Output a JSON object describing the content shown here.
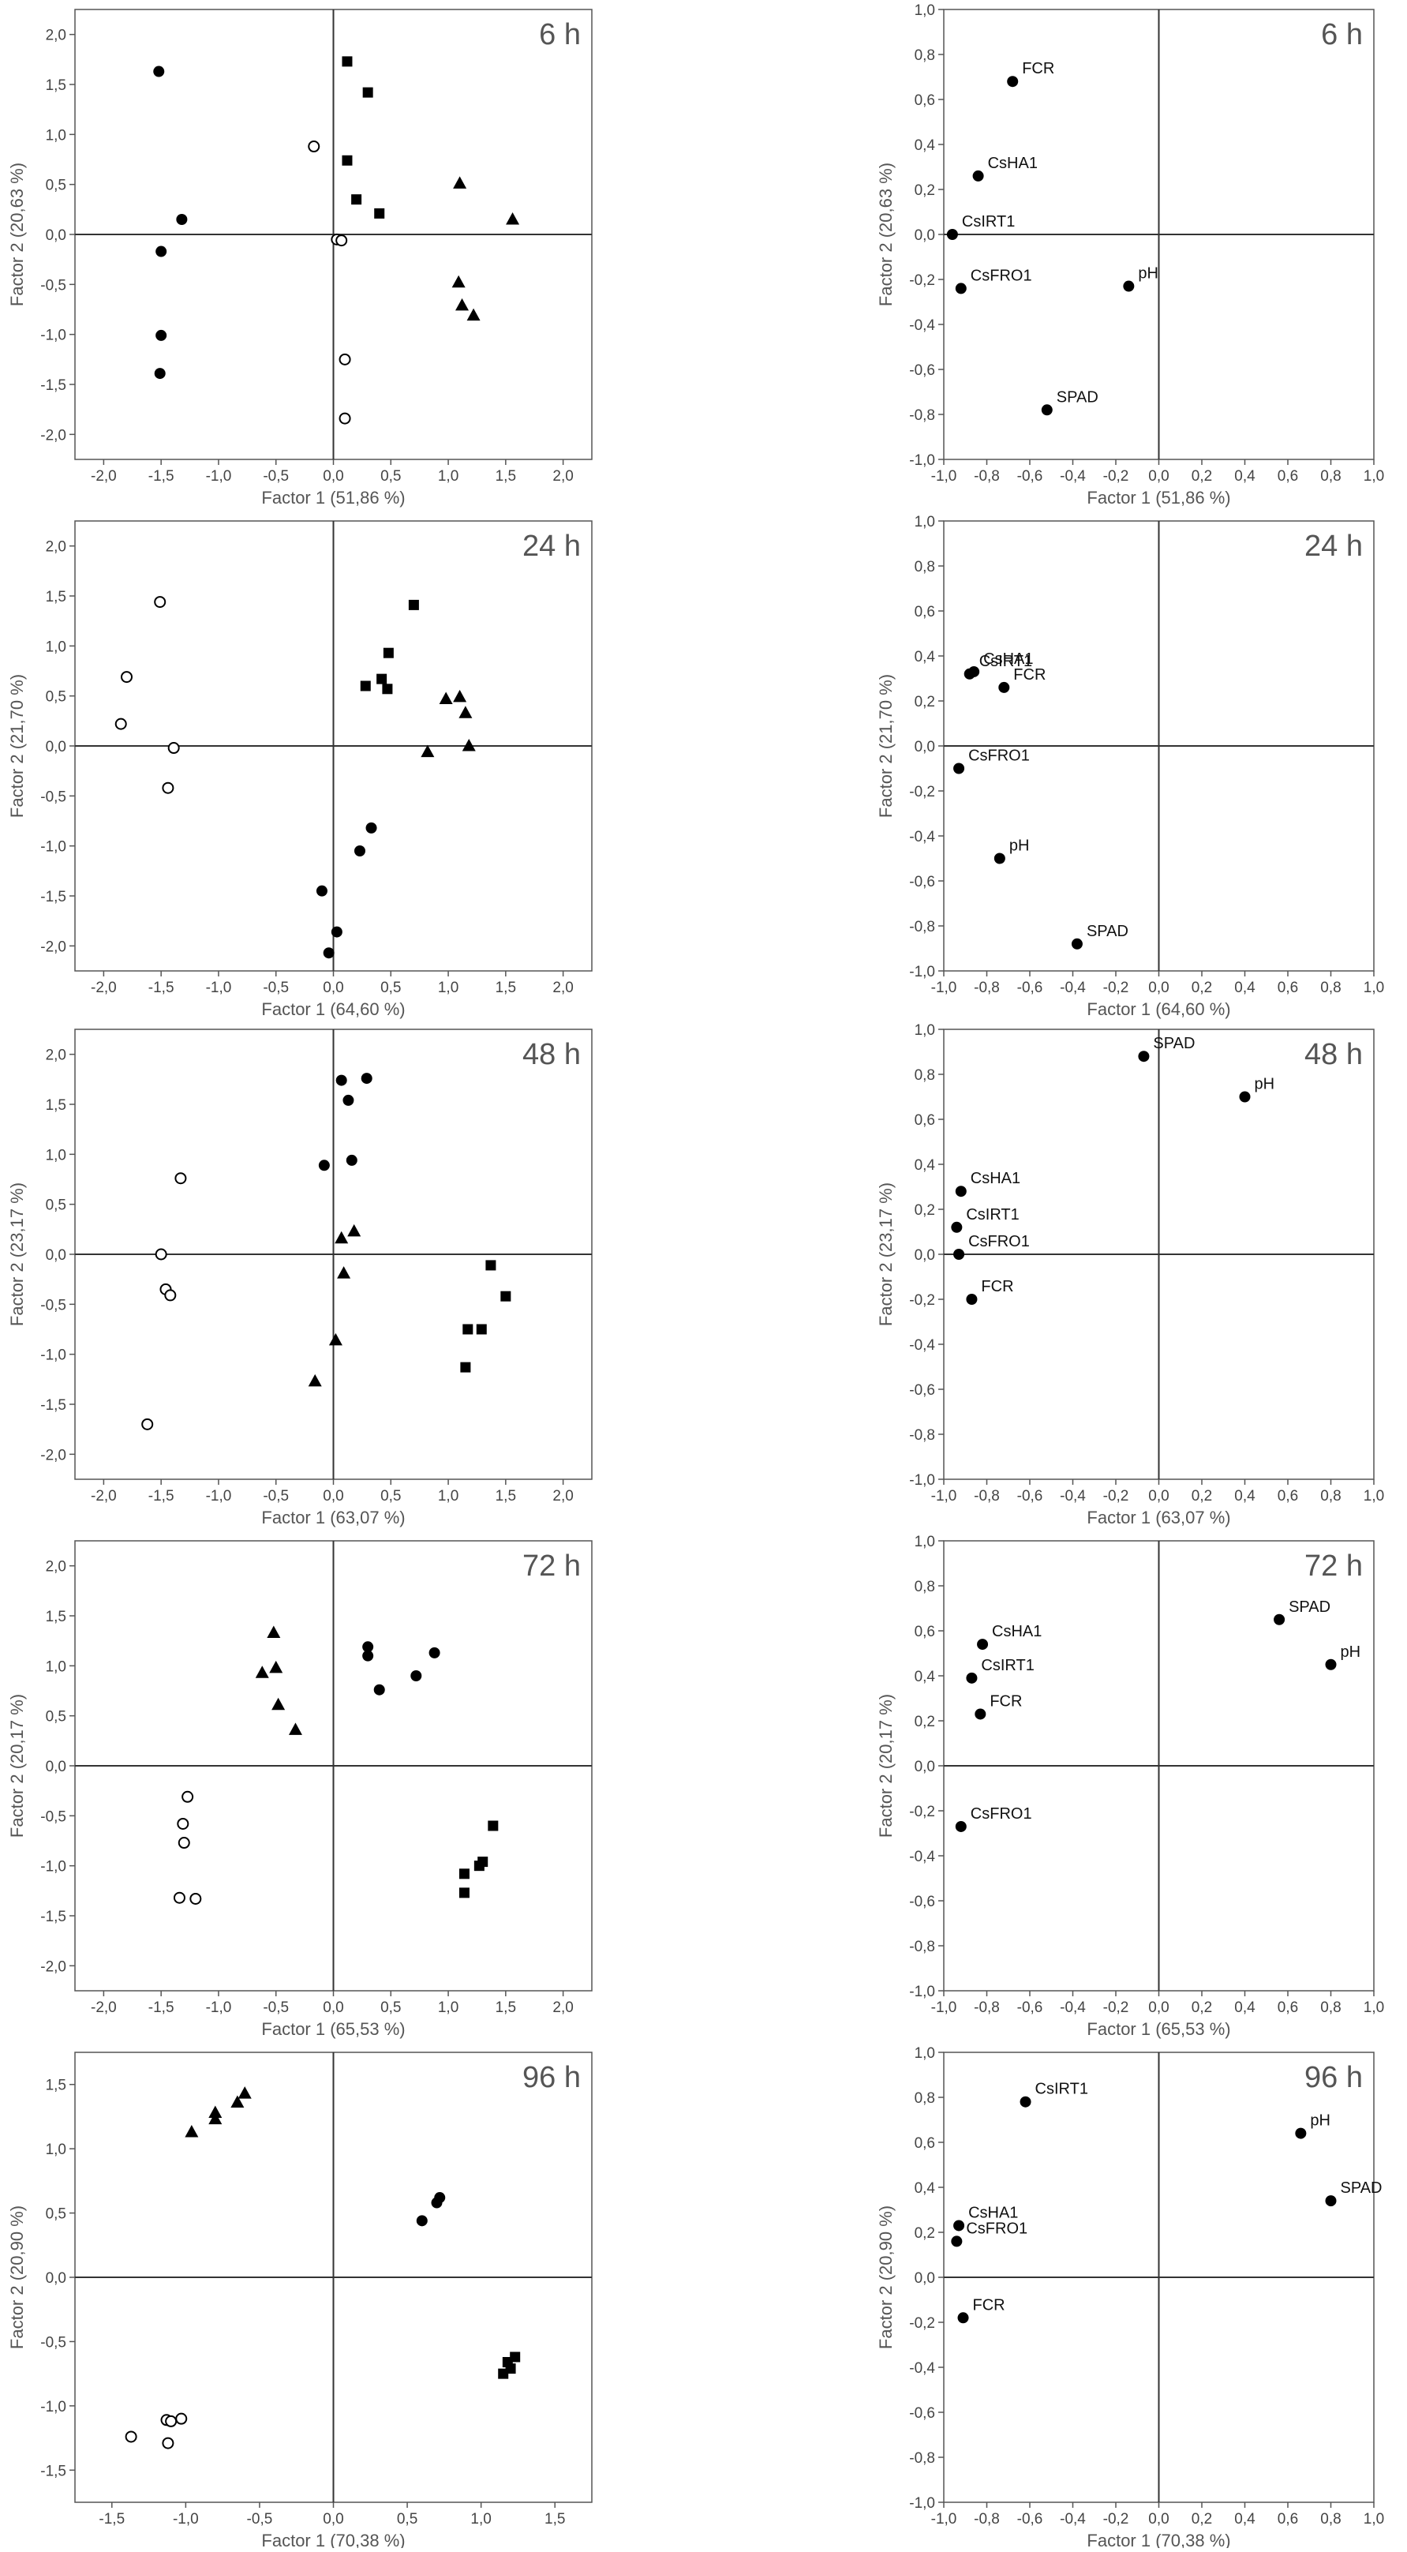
{
  "chart_data": [
    {
      "type": "scatter",
      "panel": "scores",
      "time_label": "6 h",
      "xlabel": "Factor 1 (51,86 %)",
      "ylabel": "Factor 2 (20,63 %)",
      "xlim": [
        -2.25,
        2.25
      ],
      "ylim": [
        -2.25,
        2.25
      ],
      "xticks": [
        -2.0,
        -1.5,
        -1.0,
        -0.5,
        0.0,
        0.5,
        1.0,
        1.5,
        2.0
      ],
      "yticks": [
        -2.0,
        -1.5,
        -1.0,
        -0.5,
        0.0,
        0.5,
        1.0,
        1.5,
        2.0
      ],
      "tick_decimals": 1,
      "grid": false,
      "series": [
        {
          "marker": "filled-circle",
          "points": [
            [
              -1.52,
              1.63
            ],
            [
              -1.32,
              0.15
            ],
            [
              -1.5,
              -0.17
            ],
            [
              -1.5,
              -1.01
            ],
            [
              -1.51,
              -1.39
            ]
          ]
        },
        {
          "marker": "open-circle",
          "points": [
            [
              -0.17,
              0.88
            ],
            [
              0.03,
              -0.05
            ],
            [
              0.07,
              -0.06
            ],
            [
              0.1,
              -1.25
            ],
            [
              0.1,
              -1.84
            ]
          ]
        },
        {
          "marker": "filled-square",
          "points": [
            [
              0.12,
              1.73
            ],
            [
              0.3,
              1.42
            ],
            [
              0.12,
              0.74
            ],
            [
              0.2,
              0.35
            ],
            [
              0.4,
              0.21
            ]
          ]
        },
        {
          "marker": "filled-triangle",
          "points": [
            [
              1.1,
              0.51
            ],
            [
              1.56,
              0.15
            ],
            [
              1.09,
              -0.48
            ],
            [
              1.12,
              -0.71
            ],
            [
              1.22,
              -0.81
            ]
          ]
        }
      ]
    },
    {
      "type": "scatter",
      "panel": "loadings",
      "time_label": "6 h",
      "xlabel": "Factor 1 (51,86 %)",
      "ylabel": "Factor 2 (20,63 %)",
      "xlim": [
        -1.0,
        1.0
      ],
      "ylim": [
        -1.0,
        1.0
      ],
      "xticks": [
        -1.0,
        -0.8,
        -0.6,
        -0.4,
        -0.2,
        0.0,
        0.2,
        0.4,
        0.6,
        0.8,
        1.0
      ],
      "yticks": [
        -1.0,
        -0.8,
        -0.6,
        -0.4,
        -0.2,
        0.0,
        0.2,
        0.4,
        0.6,
        0.8,
        1.0
      ],
      "tick_decimals": 1,
      "grid": false,
      "points": [
        {
          "label": "FCR",
          "x": -0.68,
          "y": 0.68
        },
        {
          "label": "CsHA1",
          "x": -0.84,
          "y": 0.26
        },
        {
          "label": "CsIRT1",
          "x": -0.96,
          "y": 0.0
        },
        {
          "label": "CsFRO1",
          "x": -0.92,
          "y": -0.24
        },
        {
          "label": "pH",
          "x": -0.14,
          "y": -0.23
        },
        {
          "label": "SPAD",
          "x": -0.52,
          "y": -0.78
        }
      ]
    },
    {
      "type": "scatter",
      "panel": "scores",
      "time_label": "24 h",
      "xlabel": "Factor 1 (64,60 %)",
      "ylabel": "Factor 2 (21,70 %)",
      "xlim": [
        -2.25,
        2.25
      ],
      "ylim": [
        -2.25,
        2.25
      ],
      "xticks": [
        -2.0,
        -1.5,
        -1.0,
        -0.5,
        0.0,
        0.5,
        1.0,
        1.5,
        2.0
      ],
      "yticks": [
        -2.0,
        -1.5,
        -1.0,
        -0.5,
        0.0,
        0.5,
        1.0,
        1.5,
        2.0
      ],
      "tick_decimals": 1,
      "grid": false,
      "series": [
        {
          "marker": "open-circle",
          "points": [
            [
              -1.51,
              1.44
            ],
            [
              -1.8,
              0.69
            ],
            [
              -1.85,
              0.22
            ],
            [
              -1.39,
              -0.02
            ],
            [
              -1.44,
              -0.42
            ]
          ]
        },
        {
          "marker": "filled-square",
          "points": [
            [
              0.7,
              1.41
            ],
            [
              0.48,
              0.93
            ],
            [
              0.42,
              0.67
            ],
            [
              0.28,
              0.6
            ],
            [
              0.47,
              0.57
            ]
          ]
        },
        {
          "marker": "filled-triangle",
          "points": [
            [
              0.98,
              0.47
            ],
            [
              1.1,
              0.49
            ],
            [
              1.15,
              0.33
            ],
            [
              0.82,
              -0.06
            ],
            [
              1.18,
              0.0
            ]
          ]
        },
        {
          "marker": "filled-circle",
          "points": [
            [
              0.33,
              -0.82
            ],
            [
              0.23,
              -1.05
            ],
            [
              -0.1,
              -1.45
            ],
            [
              0.03,
              -1.86
            ],
            [
              -0.04,
              -2.07
            ]
          ]
        }
      ]
    },
    {
      "type": "scatter",
      "panel": "loadings",
      "time_label": "24 h",
      "xlabel": "Factor 1 (64,60 %)",
      "ylabel": "Factor 2 (21,70 %)",
      "xlim": [
        -1.0,
        1.0
      ],
      "ylim": [
        -1.0,
        1.0
      ],
      "xticks": [
        -1.0,
        -0.8,
        -0.6,
        -0.4,
        -0.2,
        0.0,
        0.2,
        0.4,
        0.6,
        0.8,
        1.0
      ],
      "yticks": [
        -1.0,
        -0.8,
        -0.6,
        -0.4,
        -0.2,
        0.0,
        0.2,
        0.4,
        0.6,
        0.8,
        1.0
      ],
      "tick_decimals": 1,
      "grid": false,
      "points": [
        {
          "label": "CsIRT1",
          "x": -0.88,
          "y": 0.32
        },
        {
          "label": "CsHA1",
          "x": -0.86,
          "y": 0.33
        },
        {
          "label": "FCR",
          "x": -0.72,
          "y": 0.26
        },
        {
          "label": "CsFRO1",
          "x": -0.93,
          "y": -0.1
        },
        {
          "label": "pH",
          "x": -0.74,
          "y": -0.5
        },
        {
          "label": "SPAD",
          "x": -0.38,
          "y": -0.88
        }
      ]
    },
    {
      "type": "scatter",
      "panel": "scores",
      "time_label": "48 h",
      "xlabel": "Factor 1 (63,07 %)",
      "ylabel": "Factor 2 (23,17 %)",
      "xlim": [
        -2.25,
        2.25
      ],
      "ylim": [
        -2.25,
        2.25
      ],
      "xticks": [
        -2.0,
        -1.5,
        -1.0,
        -0.5,
        0.0,
        0.5,
        1.0,
        1.5,
        2.0
      ],
      "yticks": [
        -2.0,
        -1.5,
        -1.0,
        -0.5,
        0.0,
        0.5,
        1.0,
        1.5,
        2.0
      ],
      "tick_decimals": 1,
      "grid": false,
      "series": [
        {
          "marker": "filled-circle",
          "points": [
            [
              0.07,
              1.74
            ],
            [
              0.29,
              1.76
            ],
            [
              0.13,
              1.54
            ],
            [
              -0.08,
              0.89
            ],
            [
              0.16,
              0.94
            ]
          ]
        },
        {
          "marker": "open-circle",
          "points": [
            [
              -1.33,
              0.76
            ],
            [
              -1.5,
              0.0
            ],
            [
              -1.46,
              -0.35
            ],
            [
              -1.42,
              -0.41
            ],
            [
              -1.62,
              -1.7
            ]
          ]
        },
        {
          "marker": "filled-triangle",
          "points": [
            [
              0.18,
              0.23
            ],
            [
              0.07,
              0.16
            ],
            [
              0.09,
              -0.19
            ],
            [
              0.02,
              -0.86
            ],
            [
              -0.16,
              -1.27
            ]
          ]
        },
        {
          "marker": "filled-square",
          "points": [
            [
              1.37,
              -0.11
            ],
            [
              1.5,
              -0.42
            ],
            [
              1.17,
              -0.75
            ],
            [
              1.29,
              -0.75
            ],
            [
              1.15,
              -1.13
            ]
          ]
        }
      ]
    },
    {
      "type": "scatter",
      "panel": "loadings",
      "time_label": "48 h",
      "xlabel": "Factor 1 (63,07 %)",
      "ylabel": "Factor 2 (23,17 %)",
      "xlim": [
        -1.0,
        1.0
      ],
      "ylim": [
        -1.0,
        1.0
      ],
      "xticks": [
        -1.0,
        -0.8,
        -0.6,
        -0.4,
        -0.2,
        0.0,
        0.2,
        0.4,
        0.6,
        0.8,
        1.0
      ],
      "yticks": [
        -1.0,
        -0.8,
        -0.6,
        -0.4,
        -0.2,
        0.0,
        0.2,
        0.4,
        0.6,
        0.8,
        1.0
      ],
      "tick_decimals": 1,
      "grid": false,
      "points": [
        {
          "label": "SPAD",
          "x": -0.07,
          "y": 0.88
        },
        {
          "label": "pH",
          "x": 0.4,
          "y": 0.7
        },
        {
          "label": "CsHA1",
          "x": -0.92,
          "y": 0.28
        },
        {
          "label": "CsIRT1",
          "x": -0.94,
          "y": 0.12
        },
        {
          "label": "CsFRO1",
          "x": -0.93,
          "y": 0.0
        },
        {
          "label": "FCR",
          "x": -0.87,
          "y": -0.2
        }
      ]
    },
    {
      "type": "scatter",
      "panel": "scores",
      "time_label": "72 h",
      "xlabel": "Factor 1 (65,53 %)",
      "ylabel": "Factor 2 (20,17 %)",
      "xlim": [
        -2.25,
        2.25
      ],
      "ylim": [
        -2.25,
        2.25
      ],
      "xticks": [
        -2.0,
        -1.5,
        -1.0,
        -0.5,
        0.0,
        0.5,
        1.0,
        1.5,
        2.0
      ],
      "yticks": [
        -2.0,
        -1.5,
        -1.0,
        -0.5,
        0.0,
        0.5,
        1.0,
        1.5,
        2.0
      ],
      "tick_decimals": 1,
      "grid": false,
      "series": [
        {
          "marker": "filled-triangle",
          "points": [
            [
              -0.52,
              1.33
            ],
            [
              -0.5,
              0.98
            ],
            [
              -0.62,
              0.93
            ],
            [
              -0.48,
              0.61
            ],
            [
              -0.33,
              0.36
            ]
          ]
        },
        {
          "marker": "filled-circle",
          "points": [
            [
              0.3,
              1.19
            ],
            [
              0.3,
              1.1
            ],
            [
              0.88,
              1.13
            ],
            [
              0.72,
              0.9
            ],
            [
              0.4,
              0.76
            ]
          ]
        },
        {
          "marker": "open-circle",
          "points": [
            [
              -1.27,
              -0.31
            ],
            [
              -1.31,
              -0.58
            ],
            [
              -1.3,
              -0.77
            ],
            [
              -1.34,
              -1.32
            ],
            [
              -1.2,
              -1.33
            ]
          ]
        },
        {
          "marker": "filled-square",
          "points": [
            [
              1.39,
              -0.6
            ],
            [
              1.3,
              -0.96
            ],
            [
              1.27,
              -1.0
            ],
            [
              1.14,
              -1.08
            ],
            [
              1.14,
              -1.27
            ]
          ]
        }
      ]
    },
    {
      "type": "scatter",
      "panel": "loadings",
      "time_label": "72 h",
      "xlabel": "Factor 1 (65,53 %)",
      "ylabel": "Factor 2 (20,17 %)",
      "xlim": [
        -1.0,
        1.0
      ],
      "ylim": [
        -1.0,
        1.0
      ],
      "xticks": [
        -1.0,
        -0.8,
        -0.6,
        -0.4,
        -0.2,
        0.0,
        0.2,
        0.4,
        0.6,
        0.8,
        1.0
      ],
      "yticks": [
        -1.0,
        -0.8,
        -0.6,
        -0.4,
        -0.2,
        0.0,
        0.2,
        0.4,
        0.6,
        0.8,
        1.0
      ],
      "tick_decimals": 1,
      "grid": false,
      "points": [
        {
          "label": "CsHA1",
          "x": -0.82,
          "y": 0.54
        },
        {
          "label": "CsIRT1",
          "x": -0.87,
          "y": 0.39
        },
        {
          "label": "FCR",
          "x": -0.83,
          "y": 0.23
        },
        {
          "label": "CsFRO1",
          "x": -0.92,
          "y": -0.27
        },
        {
          "label": "SPAD",
          "x": 0.56,
          "y": 0.65
        },
        {
          "label": "pH",
          "x": 0.8,
          "y": 0.45
        }
      ]
    },
    {
      "type": "scatter",
      "panel": "scores",
      "time_label": "96 h",
      "xlabel": "Factor 1 (70,38 %)",
      "ylabel": "Factor 2 (20,90 %)",
      "xlim": [
        -1.75,
        1.75
      ],
      "ylim": [
        -1.75,
        1.75
      ],
      "xticks": [
        -1.5,
        -1.0,
        -0.5,
        0.0,
        0.5,
        1.0,
        1.5
      ],
      "yticks": [
        -1.5,
        -1.0,
        -0.5,
        0.0,
        0.5,
        1.0,
        1.5
      ],
      "tick_decimals": 1,
      "grid": false,
      "series": [
        {
          "marker": "filled-triangle",
          "points": [
            [
              -0.6,
              1.43
            ],
            [
              -0.65,
              1.36
            ],
            [
              -0.8,
              1.28
            ],
            [
              -0.8,
              1.23
            ],
            [
              -0.96,
              1.13
            ]
          ]
        },
        {
          "marker": "filled-circle",
          "points": [
            [
              0.72,
              0.62
            ],
            [
              0.7,
              0.58
            ],
            [
              0.6,
              0.44
            ]
          ]
        },
        {
          "marker": "filled-square",
          "points": [
            [
              1.23,
              -0.62
            ],
            [
              1.18,
              -0.66
            ],
            [
              1.2,
              -0.71
            ],
            [
              1.15,
              -0.75
            ]
          ]
        },
        {
          "marker": "open-circle",
          "points": [
            [
              -1.37,
              -1.24
            ],
            [
              -1.13,
              -1.11
            ],
            [
              -1.03,
              -1.1
            ],
            [
              -1.1,
              -1.12
            ],
            [
              -1.12,
              -1.29
            ]
          ]
        }
      ]
    },
    {
      "type": "scatter",
      "panel": "loadings",
      "time_label": "96 h",
      "xlabel": "Factor 1 (70,38 %)",
      "ylabel": "Factor 2 (20,90 %)",
      "xlim": [
        -1.0,
        1.0
      ],
      "ylim": [
        -1.0,
        1.0
      ],
      "xticks": [
        -1.0,
        -0.8,
        -0.6,
        -0.4,
        -0.2,
        0.0,
        0.2,
        0.4,
        0.6,
        0.8,
        1.0
      ],
      "yticks": [
        -1.0,
        -0.8,
        -0.6,
        -0.4,
        -0.2,
        0.0,
        0.2,
        0.4,
        0.6,
        0.8,
        1.0
      ],
      "tick_decimals": 1,
      "grid": false,
      "points": [
        {
          "label": "CsIRT1",
          "x": -0.62,
          "y": 0.78
        },
        {
          "label": "pH",
          "x": 0.66,
          "y": 0.64
        },
        {
          "label": "SPAD",
          "x": 0.8,
          "y": 0.34
        },
        {
          "label": "CsHA1",
          "x": -0.93,
          "y": 0.23
        },
        {
          "label": "CsFRO1",
          "x": -0.94,
          "y": 0.16
        },
        {
          "label": "FCR",
          "x": -0.91,
          "y": -0.18
        }
      ]
    }
  ]
}
